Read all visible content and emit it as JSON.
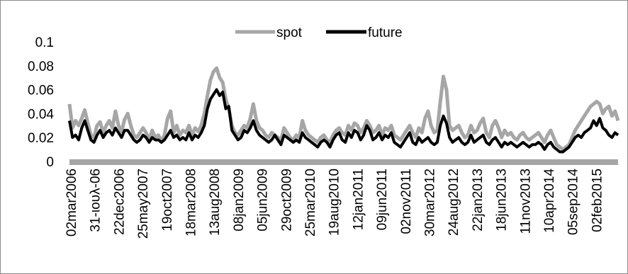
{
  "chart_data": {
    "type": "line",
    "title": "",
    "xlabel": "",
    "ylabel": "",
    "ylim": [
      0,
      0.1
    ],
    "yticks": [
      "0",
      "0.02",
      "0.04",
      "0.06",
      "0.08",
      "0.1"
    ],
    "grid": false,
    "legend_position": "top-center",
    "x_tick_labels": [
      "02mar2006",
      "31-ιουλ-06",
      "22dec2006",
      "25may2007",
      "19oct2007",
      "18mar2008",
      "13aug2008",
      "08jan2009",
      "05jun2009",
      "29oct2009",
      "25mar2010",
      "19aug2010",
      "12jan2011",
      "09jun2011",
      "02nov2011",
      "30mar2012",
      "24aug2012",
      "22jan2013",
      "18jun2013",
      "11nov2013",
      "10apr2014",
      "05sep2014",
      "02feb2015"
    ],
    "series": [
      {
        "name": "spot",
        "color": "#a6a6a6",
        "values": [
          0.048,
          0.028,
          0.034,
          0.03,
          0.036,
          0.043,
          0.032,
          0.022,
          0.02,
          0.03,
          0.033,
          0.024,
          0.03,
          0.034,
          0.028,
          0.042,
          0.03,
          0.025,
          0.035,
          0.04,
          0.03,
          0.022,
          0.02,
          0.024,
          0.028,
          0.024,
          0.018,
          0.026,
          0.02,
          0.022,
          0.017,
          0.022,
          0.036,
          0.042,
          0.024,
          0.03,
          0.022,
          0.026,
          0.024,
          0.03,
          0.022,
          0.028,
          0.025,
          0.03,
          0.04,
          0.055,
          0.068,
          0.075,
          0.078,
          0.07,
          0.066,
          0.052,
          0.044,
          0.03,
          0.024,
          0.022,
          0.026,
          0.03,
          0.028,
          0.036,
          0.048,
          0.034,
          0.028,
          0.026,
          0.022,
          0.02,
          0.024,
          0.022,
          0.02,
          0.018,
          0.028,
          0.024,
          0.02,
          0.018,
          0.022,
          0.02,
          0.034,
          0.026,
          0.022,
          0.02,
          0.018,
          0.016,
          0.02,
          0.022,
          0.018,
          0.016,
          0.022,
          0.026,
          0.028,
          0.024,
          0.022,
          0.03,
          0.026,
          0.032,
          0.03,
          0.024,
          0.028,
          0.034,
          0.03,
          0.024,
          0.026,
          0.03,
          0.022,
          0.028,
          0.026,
          0.03,
          0.022,
          0.02,
          0.018,
          0.022,
          0.026,
          0.03,
          0.024,
          0.02,
          0.028,
          0.024,
          0.036,
          0.042,
          0.03,
          0.024,
          0.026,
          0.05,
          0.071,
          0.06,
          0.03,
          0.026,
          0.028,
          0.03,
          0.024,
          0.02,
          0.022,
          0.03,
          0.024,
          0.026,
          0.032,
          0.036,
          0.024,
          0.02,
          0.03,
          0.034,
          0.028,
          0.02,
          0.026,
          0.022,
          0.024,
          0.02,
          0.018,
          0.022,
          0.024,
          0.02,
          0.018,
          0.02,
          0.022,
          0.024,
          0.02,
          0.016,
          0.022,
          0.026,
          0.02,
          0.014,
          0.012,
          0.01,
          0.012,
          0.014,
          0.02,
          0.026,
          0.03,
          0.034,
          0.038,
          0.042,
          0.046,
          0.048,
          0.05,
          0.048,
          0.04,
          0.044,
          0.046,
          0.038,
          0.042,
          0.034
        ]
      },
      {
        "name": "future",
        "color": "#000000",
        "values": [
          0.034,
          0.02,
          0.022,
          0.018,
          0.028,
          0.034,
          0.026,
          0.018,
          0.016,
          0.022,
          0.026,
          0.02,
          0.024,
          0.026,
          0.022,
          0.028,
          0.024,
          0.02,
          0.026,
          0.026,
          0.022,
          0.018,
          0.016,
          0.018,
          0.022,
          0.02,
          0.016,
          0.02,
          0.018,
          0.018,
          0.016,
          0.018,
          0.022,
          0.026,
          0.02,
          0.022,
          0.018,
          0.02,
          0.018,
          0.024,
          0.018,
          0.022,
          0.02,
          0.024,
          0.03,
          0.044,
          0.052,
          0.056,
          0.06,
          0.055,
          0.058,
          0.044,
          0.046,
          0.026,
          0.022,
          0.018,
          0.02,
          0.026,
          0.024,
          0.028,
          0.034,
          0.026,
          0.022,
          0.02,
          0.018,
          0.016,
          0.018,
          0.022,
          0.018,
          0.014,
          0.022,
          0.02,
          0.018,
          0.016,
          0.018,
          0.016,
          0.024,
          0.02,
          0.018,
          0.016,
          0.014,
          0.012,
          0.016,
          0.018,
          0.016,
          0.012,
          0.018,
          0.022,
          0.024,
          0.018,
          0.016,
          0.024,
          0.02,
          0.026,
          0.024,
          0.018,
          0.022,
          0.03,
          0.026,
          0.018,
          0.02,
          0.024,
          0.018,
          0.022,
          0.02,
          0.024,
          0.016,
          0.014,
          0.012,
          0.016,
          0.02,
          0.024,
          0.016,
          0.014,
          0.02,
          0.016,
          0.018,
          0.02,
          0.016,
          0.014,
          0.016,
          0.03,
          0.038,
          0.032,
          0.02,
          0.016,
          0.018,
          0.02,
          0.016,
          0.014,
          0.016,
          0.022,
          0.016,
          0.018,
          0.02,
          0.022,
          0.016,
          0.014,
          0.018,
          0.02,
          0.016,
          0.012,
          0.016,
          0.014,
          0.016,
          0.014,
          0.012,
          0.014,
          0.016,
          0.014,
          0.012,
          0.014,
          0.014,
          0.016,
          0.014,
          0.01,
          0.014,
          0.016,
          0.012,
          0.01,
          0.008,
          0.008,
          0.01,
          0.012,
          0.016,
          0.02,
          0.022,
          0.02,
          0.024,
          0.026,
          0.028,
          0.034,
          0.03,
          0.036,
          0.028,
          0.026,
          0.022,
          0.02,
          0.024,
          0.022
        ]
      }
    ]
  }
}
